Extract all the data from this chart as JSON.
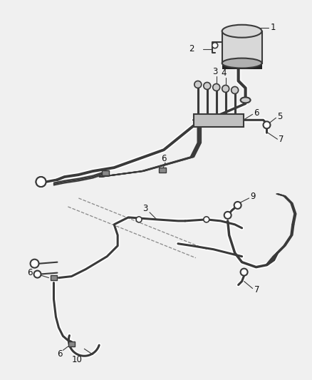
{
  "background_color": "#f0f0f0",
  "line_color": "#3a3a3a",
  "lw_tube": 2.2,
  "lw_thin": 1.2,
  "lw_label": 0.7,
  "label_fontsize": 8.5,
  "fig_w": 4.38,
  "fig_h": 5.33,
  "dpi": 100
}
